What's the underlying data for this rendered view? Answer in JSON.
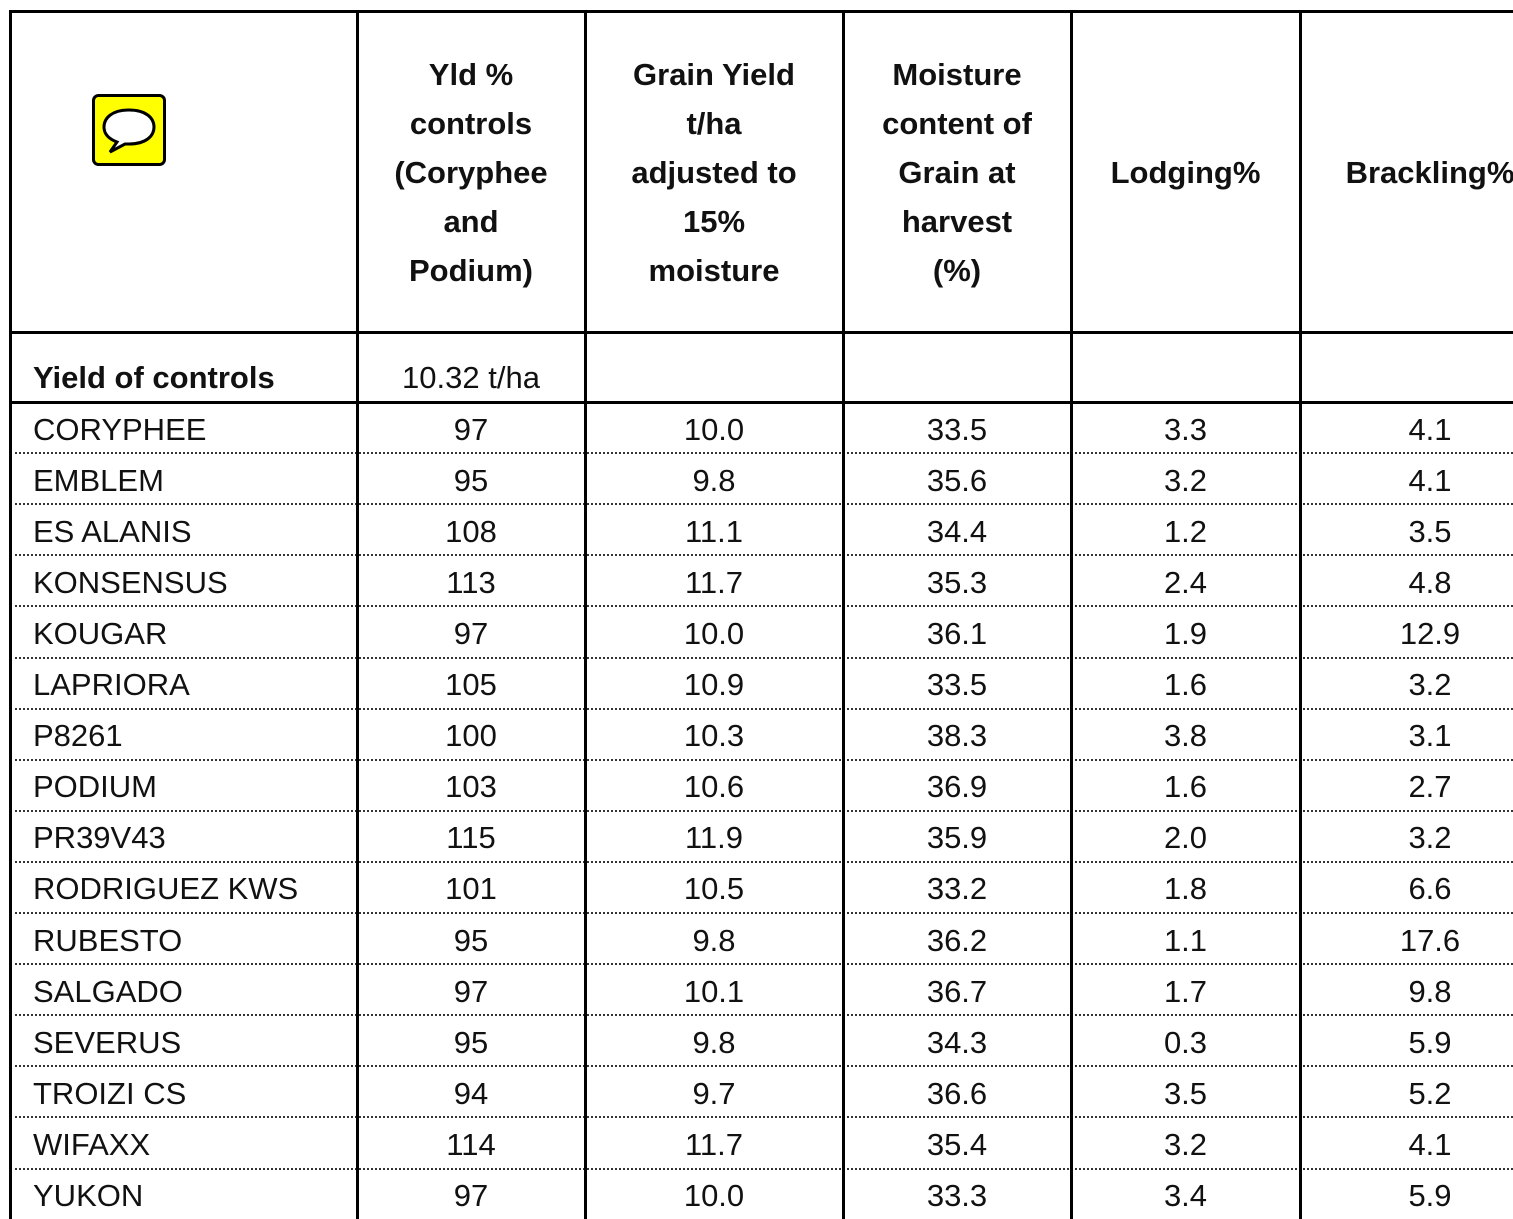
{
  "header": {
    "columns": [
      [
        "Yld %",
        "controls",
        "(Coryphee",
        "and",
        "Podium)"
      ],
      [
        "Grain Yield",
        "t/ha",
        "adjusted to",
        "15%",
        "moisture"
      ],
      [
        "Moisture",
        "content of",
        "Grain at",
        "harvest",
        "(%)"
      ],
      [
        "Lodging%"
      ],
      [
        "Brackling%"
      ]
    ]
  },
  "table": {
    "controls_row": {
      "label": "Yield of controls",
      "value": "10.32 t/ha"
    },
    "rows": [
      [
        "CORYPHEE",
        "97",
        "10.0",
        "33.5",
        "3.3",
        "4.1"
      ],
      [
        "EMBLEM",
        "95",
        "9.8",
        "35.6",
        "3.2",
        "4.1"
      ],
      [
        "ES ALANIS",
        "108",
        "11.1",
        "34.4",
        "1.2",
        "3.5"
      ],
      [
        "KONSENSUS",
        "113",
        "11.7",
        "35.3",
        "2.4",
        "4.8"
      ],
      [
        "KOUGAR",
        "97",
        "10.0",
        "36.1",
        "1.9",
        "12.9"
      ],
      [
        "LAPRIORA",
        "105",
        "10.9",
        "33.5",
        "1.6",
        "3.2"
      ],
      [
        "P8261",
        "100",
        "10.3",
        "38.3",
        "3.8",
        "3.1"
      ],
      [
        "PODIUM",
        "103",
        "10.6",
        "36.9",
        "1.6",
        "2.7"
      ],
      [
        "PR39V43",
        "115",
        "11.9",
        "35.9",
        "2.0",
        "3.2"
      ],
      [
        "RODRIGUEZ KWS",
        "101",
        "10.5",
        "33.2",
        "1.8",
        "6.6"
      ],
      [
        "RUBESTO",
        "95",
        "9.8",
        "36.2",
        "1.1",
        "17.6"
      ],
      [
        "SALGADO",
        "97",
        "10.1",
        "36.7",
        "1.7",
        "9.8"
      ],
      [
        "SEVERUS",
        "95",
        "9.8",
        "34.3",
        "0.3",
        "5.9"
      ],
      [
        "TROIZI CS",
        "94",
        "9.7",
        "36.6",
        "3.5",
        "5.2"
      ],
      [
        "WIFAXX",
        "114",
        "11.7",
        "35.4",
        "3.2",
        "4.1"
      ],
      [
        "YUKON",
        "97",
        "10.0",
        "33.3",
        "3.4",
        "5.9"
      ]
    ]
  }
}
